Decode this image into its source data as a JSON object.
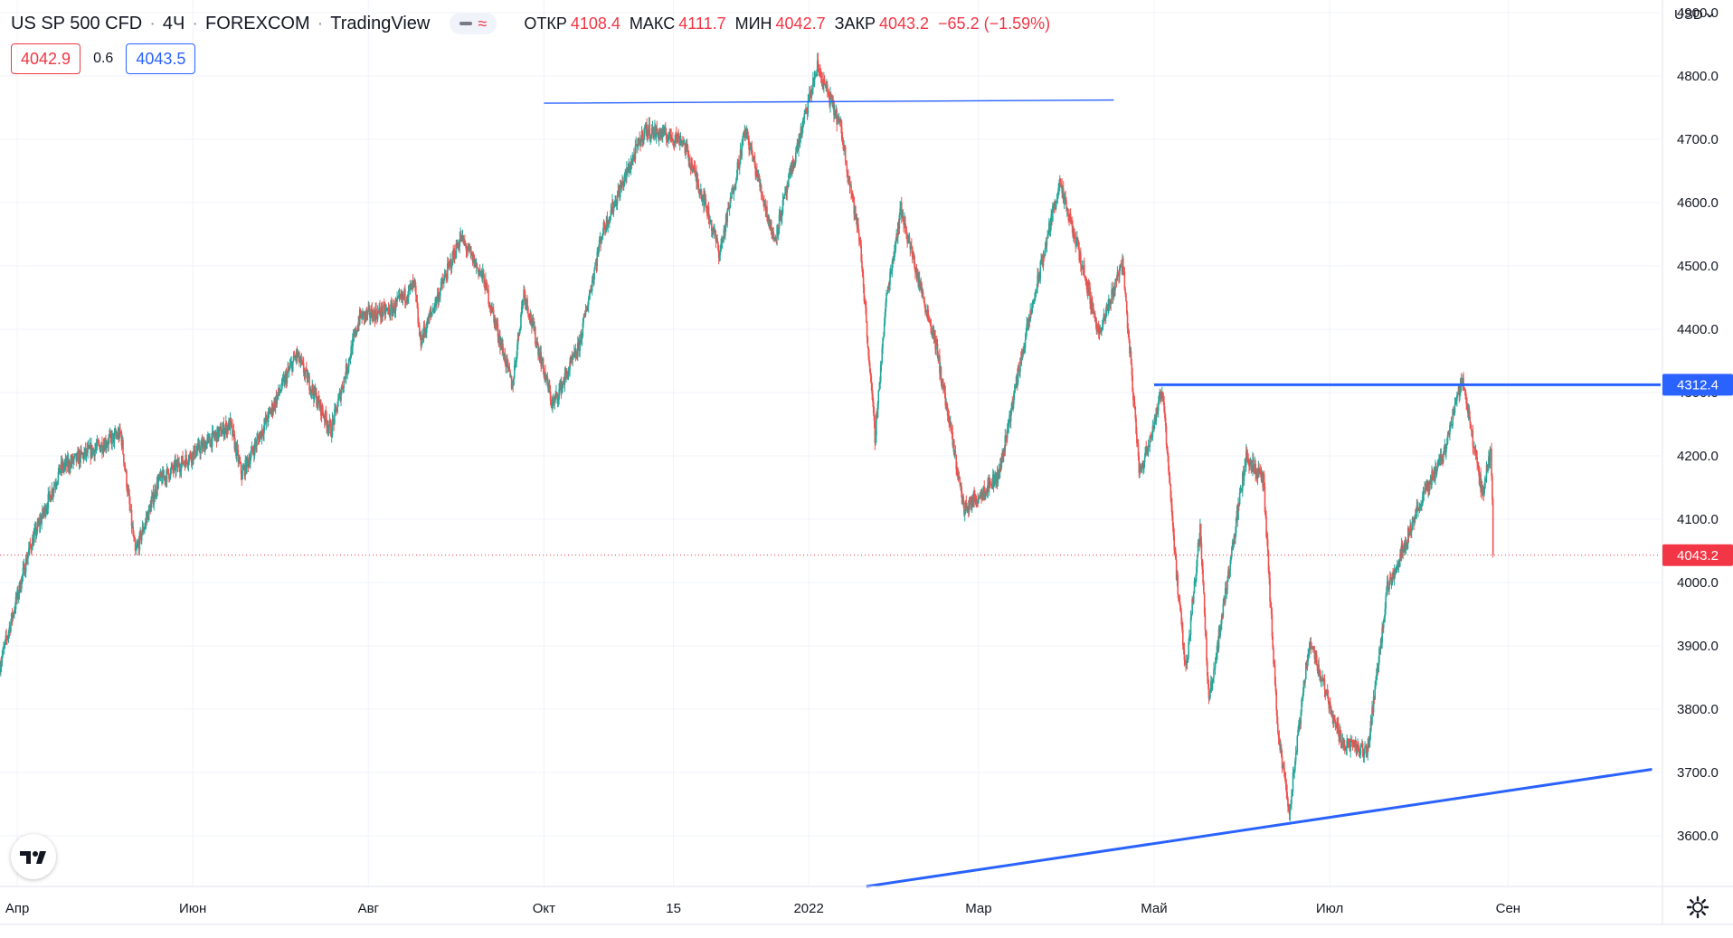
{
  "header": {
    "title": "US SP 500 CFD",
    "interval": "4Ч",
    "exchange": "FOREXCOM",
    "platform": "TradingView",
    "separator": "·"
  },
  "ohlc": {
    "open_label": "ОТКР",
    "open": "4108.4",
    "high_label": "МАКС",
    "high": "4111.7",
    "low_label": "МИН",
    "low": "4042.7",
    "close_label": "ЗАКР",
    "close": "4043.2",
    "change": "−65.2 (−1.59%)"
  },
  "trade": {
    "sell_price": "4042.9",
    "spread": "0.6",
    "buy_price": "4043.5"
  },
  "currency": "USD",
  "icons": {
    "logo": "tradingview-logo-icon",
    "settings": "gear-icon",
    "visibility": "eye-toggle-icon",
    "dropdown": "chevron-down-icon"
  },
  "colors": {
    "up": "#26a69a",
    "down": "#ef5350",
    "line": "#2962ff",
    "current_price": "#f23645",
    "grid": "#f0f3fa"
  },
  "chart_data": {
    "type": "candlestick",
    "title": "US SP 500 CFD · 4Ч · FOREXCOM",
    "ylim": [
      3520,
      4920
    ],
    "y_ticks": [
      3600,
      3700,
      3800,
      3900,
      4000,
      4100,
      4200,
      4300,
      4400,
      4500,
      4600,
      4700,
      4800,
      4900
    ],
    "y_tick_labels": [
      "3600.0",
      "3700.0",
      "3800.0",
      "3900.0",
      "4000.0",
      "4100.0",
      "4200.0",
      "4300.0",
      "4400.0",
      "4500.0",
      "4600.0",
      "4700.0",
      "4800.0",
      "4900.0"
    ],
    "x_range": [
      "2021-03-26",
      "2022-10-24"
    ],
    "x_ticks": [
      {
        "date": "2021-04-01",
        "label": "Апр"
      },
      {
        "date": "2021-06-01",
        "label": "Июн"
      },
      {
        "date": "2021-08-01",
        "label": "Авг"
      },
      {
        "date": "2021-10-01",
        "label": "Окт"
      },
      {
        "date": "2021-11-15",
        "label": "15"
      },
      {
        "date": "2022-01-01",
        "label": "2022"
      },
      {
        "date": "2022-03-01",
        "label": "Мар"
      },
      {
        "date": "2022-05-01",
        "label": "Май"
      },
      {
        "date": "2022-07-01",
        "label": "Июл"
      },
      {
        "date": "2022-09-01",
        "label": "Сен"
      }
    ],
    "price_path": [
      [
        "2021-03-26",
        3870
      ],
      [
        "2021-04-05",
        4050
      ],
      [
        "2021-04-16",
        4180
      ],
      [
        "2021-05-07",
        4235
      ],
      [
        "2021-05-12",
        4045
      ],
      [
        "2021-05-20",
        4160
      ],
      [
        "2021-06-14",
        4250
      ],
      [
        "2021-06-18",
        4170
      ],
      [
        "2021-07-07",
        4360
      ],
      [
        "2021-07-19",
        4240
      ],
      [
        "2021-07-29",
        4420
      ],
      [
        "2021-08-09",
        4430
      ],
      [
        "2021-08-17",
        4470
      ],
      [
        "2021-08-19",
        4380
      ],
      [
        "2021-09-02",
        4545
      ],
      [
        "2021-09-10",
        4480
      ],
      [
        "2021-09-20",
        4310
      ],
      [
        "2021-09-24",
        4460
      ],
      [
        "2021-10-04",
        4280
      ],
      [
        "2021-10-13",
        4370
      ],
      [
        "2021-10-21",
        4550
      ],
      [
        "2021-11-05",
        4715
      ],
      [
        "2021-11-18",
        4700
      ],
      [
        "2021-11-26",
        4600
      ],
      [
        "2021-12-01",
        4520
      ],
      [
        "2021-12-10",
        4715
      ],
      [
        "2021-12-20",
        4540
      ],
      [
        "2022-01-04",
        4815
      ],
      [
        "2022-01-12",
        4720
      ],
      [
        "2022-01-19",
        4530
      ],
      [
        "2022-01-24",
        4230
      ],
      [
        "2022-01-28",
        4450
      ],
      [
        "2022-02-02",
        4590
      ],
      [
        "2022-02-08",
        4480
      ],
      [
        "2022-02-14",
        4380
      ],
      [
        "2022-02-24",
        4115
      ],
      [
        "2022-03-08",
        4170
      ],
      [
        "2022-03-16",
        4360
      ],
      [
        "2022-03-29",
        4630
      ],
      [
        "2022-04-05",
        4520
      ],
      [
        "2022-04-12",
        4390
      ],
      [
        "2022-04-20",
        4510
      ],
      [
        "2022-04-26",
        4170
      ],
      [
        "2022-05-04",
        4305
      ],
      [
        "2022-05-09",
        4000
      ],
      [
        "2022-05-12",
        3860
      ],
      [
        "2022-05-17",
        4090
      ],
      [
        "2022-05-20",
        3810
      ],
      [
        "2022-06-02",
        4200
      ],
      [
        "2022-06-08",
        4160
      ],
      [
        "2022-06-13",
        3760
      ],
      [
        "2022-06-17",
        3640
      ],
      [
        "2022-06-24",
        3910
      ],
      [
        "2022-07-05",
        3750
      ],
      [
        "2022-07-14",
        3730
      ],
      [
        "2022-07-21",
        3990
      ],
      [
        "2022-08-01",
        4120
      ],
      [
        "2022-08-10",
        4210
      ],
      [
        "2022-08-16",
        4325
      ],
      [
        "2022-08-23",
        4140
      ],
      [
        "2022-08-26",
        4210
      ],
      [
        "2022-08-27",
        4043
      ]
    ],
    "last_price": 4043.2,
    "last_price_label": "4043.2",
    "drawings": [
      {
        "type": "trend_line",
        "points": [
          [
            "2021-10-01",
            4757
          ],
          [
            "2022-04-17",
            4762
          ]
        ],
        "style": "thin"
      },
      {
        "type": "horizontal_ray",
        "start": "2022-05-01",
        "price": 4312.4,
        "label": "4312.4"
      },
      {
        "type": "trend_line",
        "points": [
          [
            "2022-01-21",
            3520
          ],
          [
            "2022-10-21",
            3705
          ]
        ],
        "style": "thick"
      }
    ],
    "grid": true
  }
}
